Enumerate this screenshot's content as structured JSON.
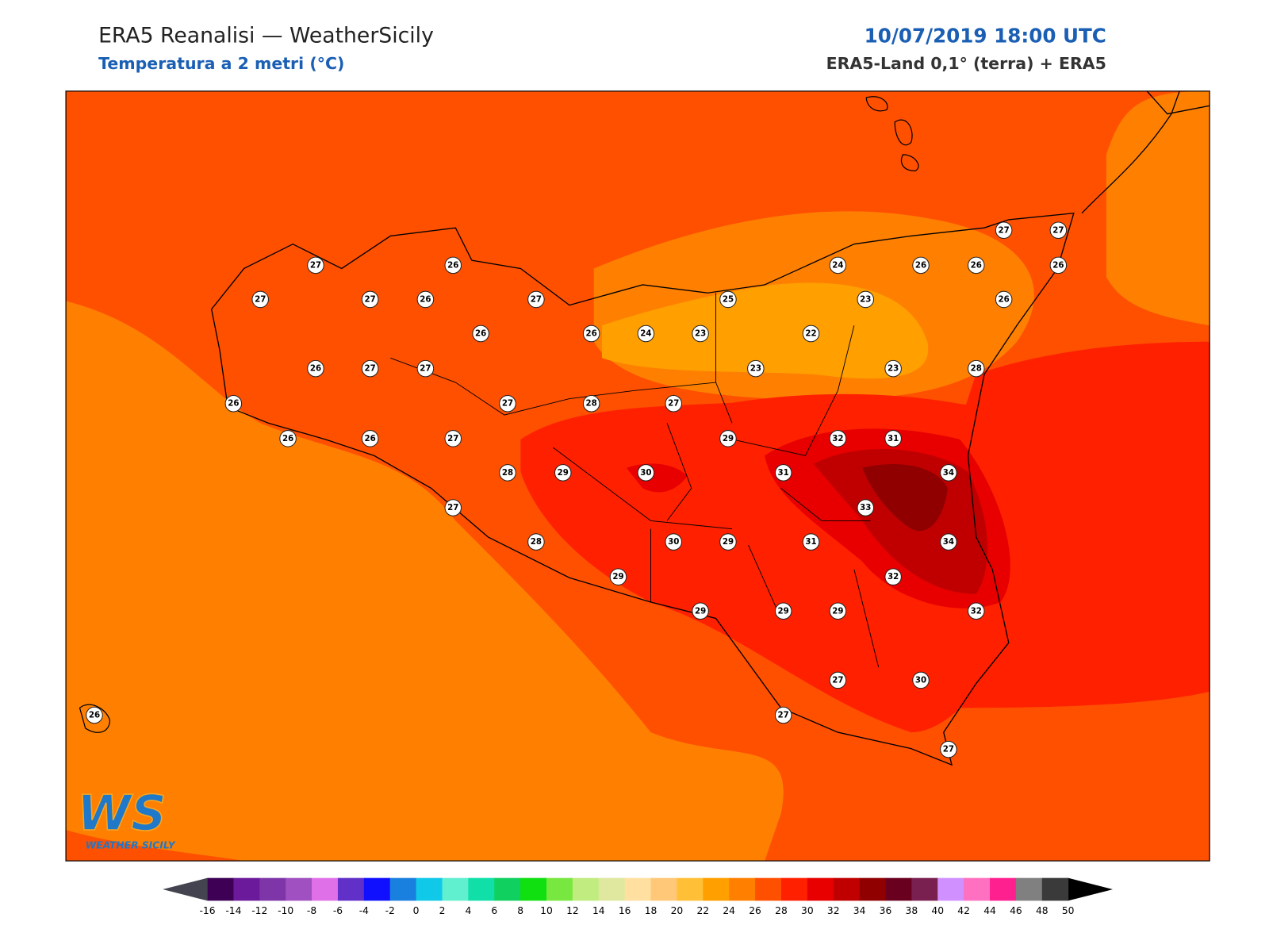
{
  "header": {
    "title": "ERA5 Reanalisi — WeatherSicily",
    "subtitle": "Temperatura a 2 metri (°C)",
    "datetime": "10/07/2019 18:00 UTC",
    "source": "ERA5-Land 0,1° (terra) + ERA5"
  },
  "stations": [
    27,
    26,
    27,
    27,
    26,
    27,
    26,
    26,
    24,
    23,
    25,
    24,
    26,
    26,
    27,
    27,
    26,
    23,
    26,
    22,
    23,
    23,
    28,
    26,
    27,
    27,
    26,
    26,
    26,
    27,
    27,
    28,
    27,
    29,
    32,
    31,
    28,
    29,
    30,
    31,
    34,
    27,
    33,
    28,
    30,
    29,
    31,
    34,
    29,
    32,
    29,
    29,
    29,
    32,
    27,
    30,
    27,
    27,
    26
  ],
  "colorbar": {
    "ticks": [
      -16,
      -14,
      -12,
      -10,
      -8,
      -6,
      -4,
      -2,
      0,
      2,
      4,
      6,
      8,
      10,
      12,
      14,
      16,
      18,
      20,
      22,
      24,
      26,
      28,
      30,
      32,
      34,
      36,
      38,
      40,
      42,
      44,
      46,
      48,
      50
    ],
    "colors": [
      "#3d0055",
      "#6a1a9a",
      "#7d35a8",
      "#a050c0",
      "#e070e8",
      "#6030c8",
      "#1010ff",
      "#1a80e0",
      "#10c8e8",
      "#60f0d0",
      "#10e0a8",
      "#10d060",
      "#10e010",
      "#78e840",
      "#c0ec80",
      "#e0e8a0",
      "#ffe0a0",
      "#ffc878",
      "#ffc038",
      "#ffa000",
      "#ff8000",
      "#ff5000",
      "#ff2000",
      "#e80000",
      "#c00000",
      "#900000",
      "#6a0020",
      "#7a2050",
      "#d090ff",
      "#ff70c0",
      "#ff2090",
      "#808080",
      "#3a3a3a"
    ],
    "under_color": "#444450",
    "over_color": "#000000"
  },
  "logo": {
    "mark": "WS",
    "text": "WEATHER SICILY"
  }
}
